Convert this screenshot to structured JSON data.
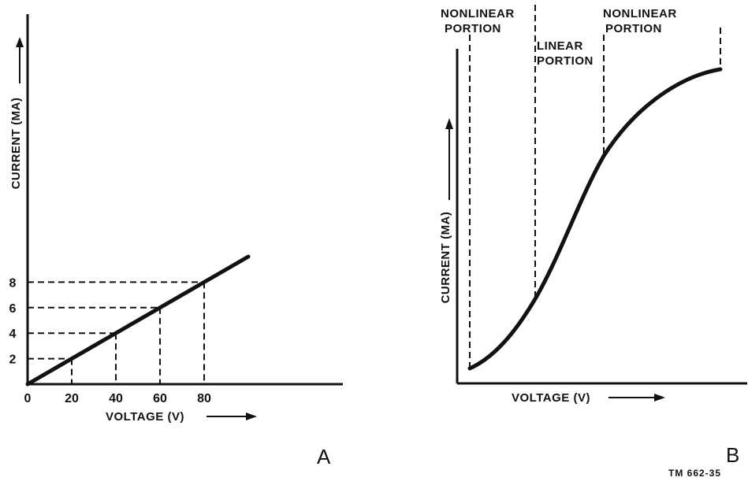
{
  "chart_data": [
    {
      "type": "line",
      "panel_label": "A",
      "xlabel": "VOLTAGE (V)",
      "ylabel": "CURRENT (MA)",
      "x_ticks": [
        "0",
        "20",
        "40",
        "60",
        "80"
      ],
      "y_ticks": [
        "2",
        "4",
        "6",
        "8"
      ],
      "x": [
        0,
        20,
        40,
        60,
        80,
        100
      ],
      "values": [
        0,
        2,
        4,
        6,
        8,
        10
      ],
      "reference_points": [
        {
          "x": 20,
          "y": 2
        },
        {
          "x": 40,
          "y": 4
        },
        {
          "x": 60,
          "y": 6
        },
        {
          "x": 80,
          "y": 8
        }
      ],
      "grid": false
    },
    {
      "type": "line",
      "panel_label": "B",
      "xlabel": "VOLTAGE (V)",
      "ylabel": "CURRENT (MA)",
      "regions": [
        "NONLINEAR PORTION",
        "LINEAR PORTION",
        "NONLINEAR PORTION"
      ],
      "grid": false
    }
  ],
  "figure_id": "TM 662-35"
}
